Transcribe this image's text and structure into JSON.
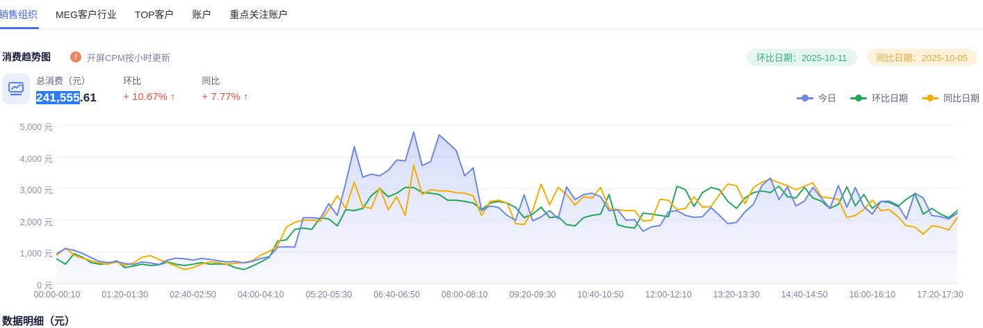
{
  "tabs": {
    "items": [
      {
        "label": "销售组织",
        "active": true
      },
      {
        "label": "MEG客户行业",
        "active": false
      },
      {
        "label": "TOP客户",
        "active": false
      },
      {
        "label": "账户",
        "active": false
      },
      {
        "label": "重点关注账户",
        "active": false
      }
    ]
  },
  "section": {
    "title": "消费趋势图",
    "notice_icon": "alert-icon",
    "notice": "开屏CPM按小时更新",
    "badges": [
      {
        "label": "环比日期：2025-10-11",
        "type": "hb",
        "text_color": "#33b37d",
        "bg_color": "#e5f6ee"
      },
      {
        "label": "同比日期：2025-10-05",
        "type": "tb",
        "text_color": "#f0a63a",
        "bg_color": "#fdf3dc"
      }
    ]
  },
  "stats": {
    "icon": "trend-chart-icon",
    "total": {
      "label": "总消费（元）",
      "value_highlight": "241,555",
      "value_rest": ".61"
    },
    "ring": {
      "label": "环比",
      "value": "+ 10.67%",
      "arrow": "↑",
      "color": "#f04f40"
    },
    "yoy": {
      "label": "同比",
      "value": "+ 7.77%",
      "arrow": "↑",
      "color": "#f04f40"
    }
  },
  "legend": {
    "items": [
      {
        "label": "今日",
        "color": "#6b87e8"
      },
      {
        "label": "环比日期",
        "color": "#21a854"
      },
      {
        "label": "同比日期",
        "color": "#f5ad00"
      }
    ]
  },
  "footer": {
    "title": "数据明细（元）"
  },
  "chart_data": {
    "type": "line",
    "title": "消费趋势图",
    "ylabel": "元",
    "ylim": [
      0,
      5000
    ],
    "y_ticks": [
      "0 元",
      "1,000 元",
      "2,000 元",
      "3,000 元",
      "4,000 元",
      "5,000 元"
    ],
    "x_interval_minutes": 10,
    "x_tick_indices": [
      0,
      8,
      16,
      24,
      32,
      40,
      48,
      56,
      64,
      72,
      80,
      88,
      96,
      104
    ],
    "x_tick_labels": [
      "00:00-00:10",
      "01:20-01:30",
      "02:40-02:50",
      "04:00-04:10",
      "05:20-05:30",
      "06:40-06:50",
      "08:00-08:10",
      "09:20-09:30",
      "10:40-10:50",
      "12:00-12:10",
      "13:20-13:30",
      "14:40-14:50",
      "16:00-16:10",
      "17:20-17:30"
    ],
    "grid": true,
    "legend_position": "top-right",
    "series": [
      {
        "name": "今日",
        "color": "#6b87e8",
        "area_fill": true,
        "values": [
          950,
          1100,
          1050,
          950,
          820,
          700,
          660,
          700,
          630,
          600,
          680,
          650,
          600,
          740,
          800,
          780,
          740,
          790,
          760,
          720,
          680,
          700,
          650,
          700,
          790,
          850,
          1150,
          1160,
          1150,
          2080,
          2080,
          2050,
          2520,
          2150,
          3180,
          4320,
          3360,
          3450,
          3400,
          3570,
          3900,
          3870,
          4780,
          3720,
          3850,
          4690,
          4450,
          4200,
          3400,
          3650,
          2300,
          2450,
          2400,
          2150,
          2000,
          2800,
          1980,
          2100,
          2300,
          2050,
          3050,
          2650,
          2810,
          2850,
          2740,
          2300,
          2330,
          2000,
          2010,
          1650,
          1790,
          1830,
          2260,
          2300,
          2150,
          2090,
          2110,
          2400,
          2150,
          1890,
          1930,
          2260,
          2500,
          3100,
          3330,
          2650,
          3050,
          2450,
          2600,
          3030,
          2700,
          2370,
          3090,
          2410,
          3030,
          2430,
          2190,
          2590,
          2600,
          2480,
          2040,
          2850,
          2700,
          2150,
          2110,
          2040,
          2220
        ]
      },
      {
        "name": "环比日期",
        "color": "#21a854",
        "area_fill": false,
        "values": [
          770,
          610,
          940,
          830,
          660,
          610,
          620,
          720,
          500,
          550,
          610,
          570,
          590,
          680,
          610,
          570,
          610,
          660,
          610,
          620,
          610,
          500,
          440,
          550,
          680,
          830,
          1340,
          1380,
          1710,
          1750,
          1710,
          2080,
          2040,
          1820,
          2330,
          2300,
          2370,
          2770,
          2990,
          2740,
          2850,
          3030,
          3030,
          2870,
          2850,
          2810,
          2630,
          2630,
          2590,
          2540,
          2330,
          2540,
          2590,
          2540,
          2400,
          2080,
          2190,
          2410,
          2080,
          2110,
          1860,
          1820,
          2080,
          2150,
          2190,
          2810,
          1860,
          1780,
          1750,
          2220,
          2190,
          2150,
          2110,
          3070,
          2960,
          2430,
          2870,
          3030,
          2960,
          2590,
          2370,
          2700,
          2870,
          2920,
          2870,
          3070,
          2740,
          2700,
          3030,
          2700,
          2600,
          2370,
          2500,
          3050,
          2450,
          2810,
          2370,
          2590,
          2560,
          2430,
          2660,
          2830,
          2190,
          2370,
          2190,
          2080,
          2300
        ]
      },
      {
        "name": "同比日期",
        "color": "#f5ad00",
        "area_fill": false,
        "values": [
          900,
          1120,
          900,
          800,
          720,
          650,
          610,
          680,
          570,
          650,
          830,
          880,
          760,
          660,
          550,
          440,
          500,
          610,
          680,
          660,
          610,
          640,
          660,
          720,
          900,
          1010,
          1200,
          1780,
          1930,
          2000,
          2000,
          1970,
          2330,
          2770,
          2370,
          3200,
          2430,
          2370,
          3030,
          2330,
          2740,
          2150,
          3730,
          2810,
          2960,
          2920,
          2920,
          2870,
          2850,
          2770,
          2150,
          2590,
          2630,
          2540,
          1890,
          1860,
          2300,
          3140,
          2480,
          3030,
          2810,
          2480,
          2740,
          2700,
          3030,
          2370,
          2330,
          2300,
          2300,
          1970,
          2000,
          2660,
          2630,
          2330,
          2370,
          2740,
          2410,
          2430,
          2810,
          3140,
          3090,
          2520,
          3030,
          3200,
          3290,
          3180,
          3090,
          2960,
          3070,
          3180,
          2740,
          2700,
          2660,
          2080,
          2150,
          2330,
          2630,
          2300,
          2330,
          2110,
          1820,
          1780,
          1560,
          1820,
          1780,
          1690,
          2080
        ]
      }
    ]
  }
}
